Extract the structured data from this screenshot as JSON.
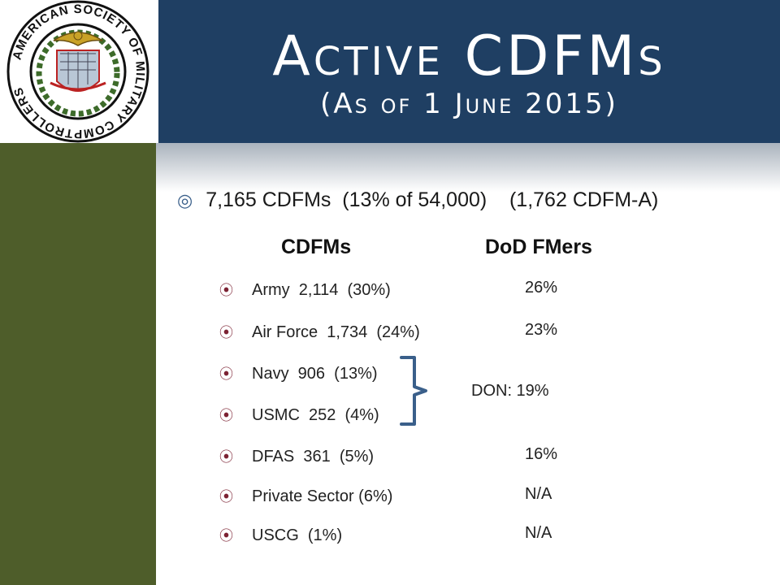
{
  "logo": {
    "ring_text": "AMERICAN SOCIETY OF MILITARY COMPTROLLERS"
  },
  "title": {
    "main": "Active CDFMs",
    "sub": "(As of 1 June 2015)"
  },
  "summary": {
    "bullet": "◎",
    "text": "7,165 CDFMs  (13% of 54,000)    (1,762 CDFM-A)"
  },
  "columns": {
    "left": "CDFMs",
    "right": "DoD FMers"
  },
  "rows": [
    {
      "label": "Army  2,114  (30%)",
      "dod": "26%"
    },
    {
      "label": "Air Force  1,734  (24%)",
      "dod": "23%"
    },
    {
      "label": "Navy  906  (13%)",
      "dod": ""
    },
    {
      "label": "USMC  252  (4%)",
      "dod": ""
    },
    {
      "label": "DFAS  361  (5%)",
      "dod": "16%"
    },
    {
      "label": "Private Sector (6%)",
      "dod": "N/A"
    },
    {
      "label": "USCG  (1%)",
      "dod": "N/A"
    }
  ],
  "don": {
    "text": "DON: 19%"
  },
  "colors": {
    "title_band": "#1f3f63",
    "left_bar": "#4e5d2a",
    "bullet_accent": "#7c2233",
    "bracket": "#3a5f8a"
  },
  "icons": {
    "row_bullet": "⦿"
  }
}
